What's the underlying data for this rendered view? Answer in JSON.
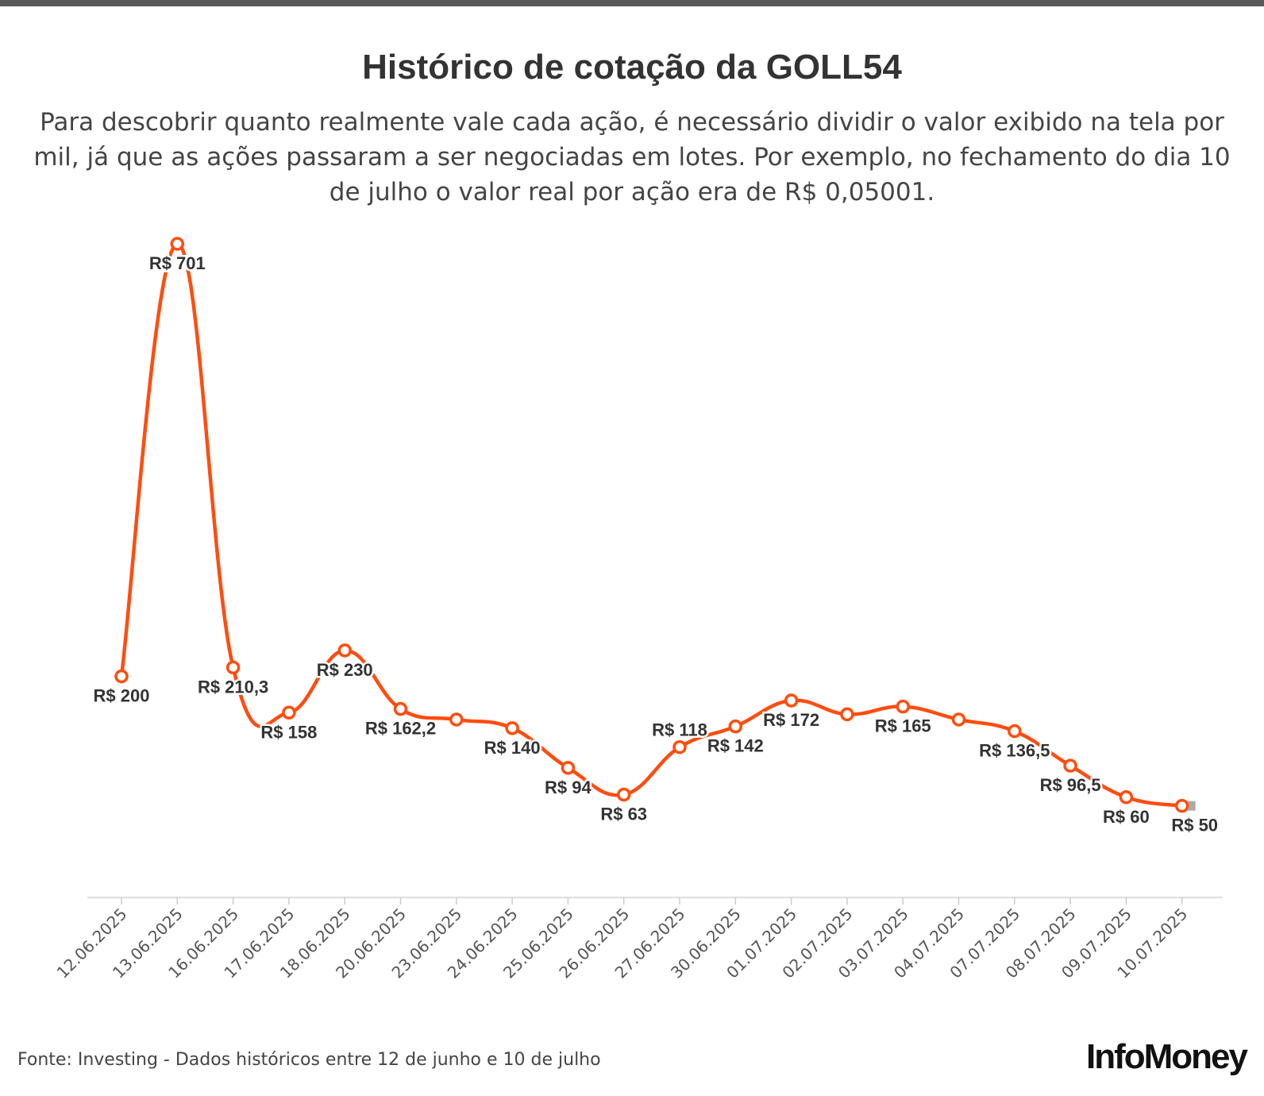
{
  "header": {
    "title": "Histórico de cotação da GOLL54",
    "subtitle": "Para descobrir quanto realmente vale cada ação, é necessário dividir o valor exibido na tela por mil, já que as ações passaram a ser negociadas em lotes. Por exemplo, no fechamento do dia 10 de julho o valor real por ação era de R$ 0,05001."
  },
  "footer": {
    "source": "Fonte: Investing - Dados históricos entre 12 de junho e 10 de julho",
    "logo": "InfoMoney"
  },
  "colors": {
    "line": "#ff4d0f",
    "axis": "#dddddd",
    "text": "#333333",
    "end_marker": "#aaaaaa"
  },
  "chart_data": {
    "type": "line",
    "title": "Histórico de cotação da GOLL54",
    "xlabel": "",
    "ylabel": "",
    "ylim": [
      0,
      720
    ],
    "grid": false,
    "categories": [
      "12.06.2025",
      "13.06.2025",
      "16.06.2025",
      "17.06.2025",
      "18.06.2025",
      "20.06.2025",
      "23.06.2025",
      "24.06.2025",
      "25.06.2025",
      "26.06.2025",
      "27.06.2025",
      "30.06.2025",
      "01.07.2025",
      "02.07.2025",
      "03.07.2025",
      "04.07.2025",
      "07.07.2025",
      "08.07.2025",
      "09.07.2025",
      "10.07.2025"
    ],
    "values": [
      200,
      701,
      210.3,
      158,
      230,
      162.2,
      150,
      140,
      94,
      63,
      118,
      142,
      172,
      156,
      165,
      150,
      136.5,
      96.5,
      60,
      50
    ],
    "labels": [
      "R$ 200",
      "R$ 701",
      "R$ 210,3",
      "R$ 158",
      "R$ 230",
      "R$ 162,2",
      "",
      "R$ 140",
      "R$ 94",
      "R$ 63",
      "R$ 118",
      "R$ 142",
      "R$ 172",
      "",
      "R$ 165",
      "",
      "R$ 136,5",
      "R$ 96,5",
      "R$ 60",
      "R$ 50"
    ],
    "label_position": [
      "below",
      "below",
      "below",
      "below",
      "below",
      "below",
      "none",
      "below",
      "below",
      "below",
      "above",
      "below",
      "below",
      "none",
      "below",
      "none",
      "below",
      "below",
      "below",
      "below"
    ]
  }
}
